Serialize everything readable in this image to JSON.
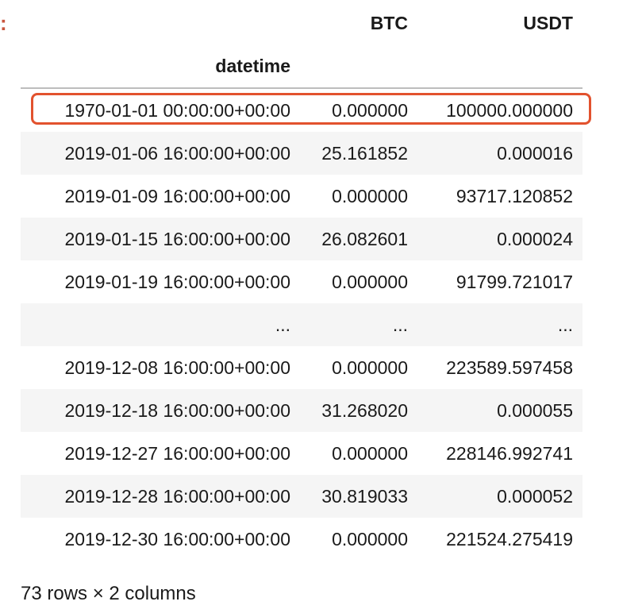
{
  "prompt_marker": ":",
  "columns": [
    "BTC",
    "USDT"
  ],
  "index_name": "datetime",
  "rows": [
    {
      "index": "1970-01-01 00:00:00+00:00",
      "btc": "0.000000",
      "usdt": "100000.000000"
    },
    {
      "index": "2019-01-06 16:00:00+00:00",
      "btc": "25.161852",
      "usdt": "0.000016"
    },
    {
      "index": "2019-01-09 16:00:00+00:00",
      "btc": "0.000000",
      "usdt": "93717.120852"
    },
    {
      "index": "2019-01-15 16:00:00+00:00",
      "btc": "26.082601",
      "usdt": "0.000024"
    },
    {
      "index": "2019-01-19 16:00:00+00:00",
      "btc": "0.000000",
      "usdt": "91799.721017"
    },
    {
      "index": "...",
      "btc": "...",
      "usdt": "..."
    },
    {
      "index": "2019-12-08 16:00:00+00:00",
      "btc": "0.000000",
      "usdt": "223589.597458"
    },
    {
      "index": "2019-12-18 16:00:00+00:00",
      "btc": "31.268020",
      "usdt": "0.000055"
    },
    {
      "index": "2019-12-27 16:00:00+00:00",
      "btc": "0.000000",
      "usdt": "228146.992741"
    },
    {
      "index": "2019-12-28 16:00:00+00:00",
      "btc": "30.819033",
      "usdt": "0.000052"
    },
    {
      "index": "2019-12-30 16:00:00+00:00",
      "btc": "0.000000",
      "usdt": "221524.275419"
    }
  ],
  "shape_text": "73 rows × 2 columns",
  "colors": {
    "highlight": "#e2522e",
    "prompt_marker": "#c8553d",
    "zebra": "#f5f5f5"
  }
}
